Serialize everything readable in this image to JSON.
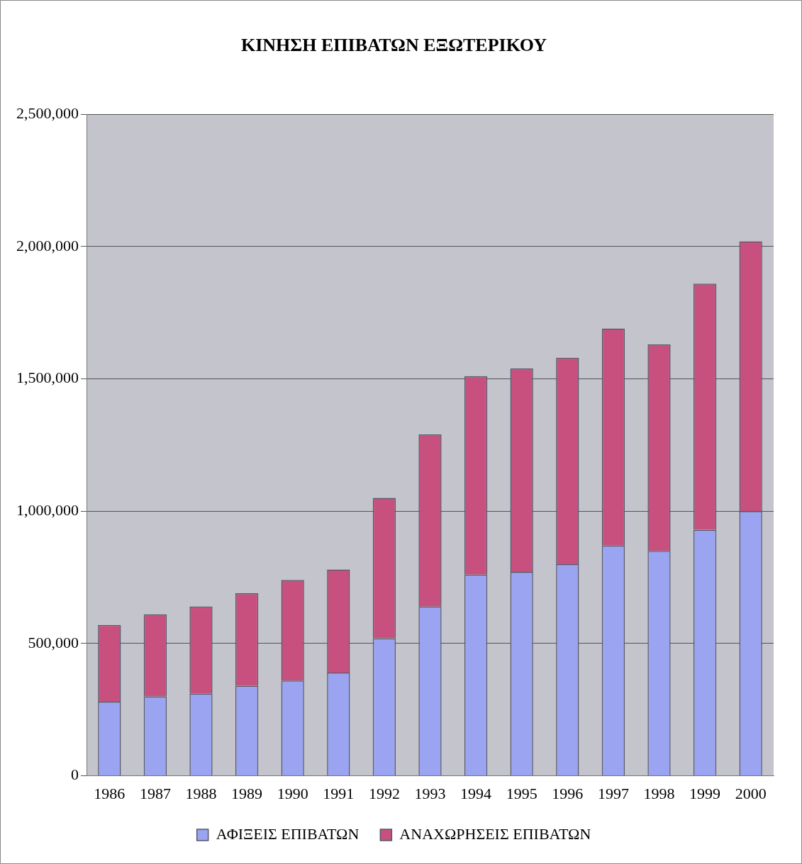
{
  "chart_data": {
    "type": "bar",
    "title": "ΚΙΝΗΣΗ ΕΠΙΒΑΤΩΝ ΕΞΩΤΕΡΙΚΟΥ",
    "categories": [
      "1986",
      "1987",
      "1988",
      "1989",
      "1990",
      "1991",
      "1992",
      "1993",
      "1994",
      "1995",
      "1996",
      "1997",
      "1998",
      "1999",
      "2000"
    ],
    "series": [
      {
        "name": "ΑΦΙΞΕΙΣ ΕΠΙΒΑΤΩΝ",
        "color": "#9aa4f0",
        "values": [
          280000,
          300000,
          310000,
          340000,
          360000,
          390000,
          520000,
          640000,
          760000,
          770000,
          800000,
          870000,
          850000,
          930000,
          1000000
        ]
      },
      {
        "name": "ΑΝΑΧΩΡΗΣΕΙΣ ΕΠΙΒΑΤΩΝ",
        "color": "#c8507e",
        "values": [
          290000,
          310000,
          330000,
          350000,
          380000,
          390000,
          530000,
          650000,
          750000,
          770000,
          780000,
          820000,
          780000,
          930000,
          1020000
        ]
      }
    ],
    "stacked": true,
    "ylim": [
      0,
      2500000
    ],
    "yticks": [
      0,
      {
        "value": 500000,
        "label": "500,000"
      },
      {
        "value": 1000000,
        "label": "1,000,000"
      },
      {
        "value": 1500000,
        "label": "1,500,000"
      },
      {
        "value": 2000000,
        "label": "2,000,000"
      },
      {
        "value": 2500000,
        "label": "2,500,000"
      }
    ],
    "grid": "y",
    "legend": "bottom"
  }
}
